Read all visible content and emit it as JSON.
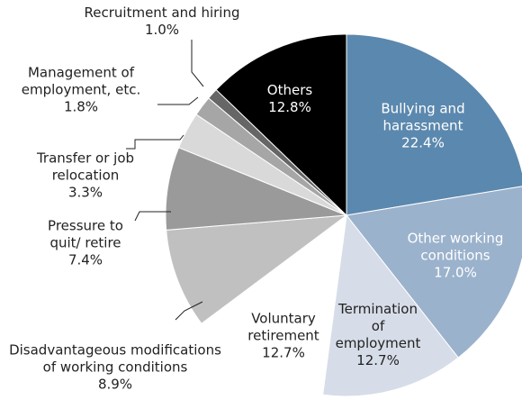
{
  "chart_data": {
    "type": "pie",
    "categories": [
      "Bullying and harassment",
      "Other working conditions",
      "Termination of employment",
      "Voluntary retirement",
      "Disadvantageous modifications of working conditions",
      "Pressure to quit/ retire",
      "Transfer or job relocation",
      "Management of employment, etc.",
      "Recruitment and hiring",
      "Others"
    ],
    "values": [
      22.4,
      17.0,
      12.7,
      12.7,
      8.9,
      7.4,
      3.3,
      1.8,
      1.0,
      12.8
    ],
    "value_labels": [
      "22.4%",
      "17.0%",
      "12.7%",
      "12.7%",
      "8.9%",
      "7.4%",
      "3.3%",
      "1.8%",
      "1.0%",
      "12.8%"
    ],
    "colors": [
      "#5b88ae",
      "#9bb2cc",
      "#d6dde8",
      "#ffffff",
      "#c0c0c0",
      "#9a9a9a",
      "#d9d9d9",
      "#a6a6a6",
      "#666666",
      "#000000"
    ]
  }
}
